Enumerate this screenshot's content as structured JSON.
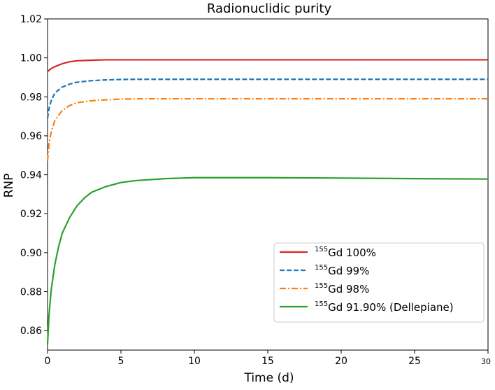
{
  "chart_data": {
    "type": "line",
    "title": "Radionuclidic purity",
    "xlabel": "Time (d)",
    "ylabel": "RNP",
    "xlim": [
      0,
      30
    ],
    "ylim": [
      0.85,
      1.02
    ],
    "xticks": [
      0,
      5,
      10,
      15,
      20,
      25,
      30
    ],
    "xtick_labels": [
      "0",
      "5",
      "10",
      "15",
      "20",
      "25",
      "30"
    ],
    "yticks": [
      0.86,
      0.88,
      0.9,
      0.92,
      0.94,
      0.96,
      0.98,
      1.0,
      1.02
    ],
    "ytick_labels": [
      "0.86",
      "0.88",
      "0.90",
      "0.92",
      "0.94",
      "0.96",
      "0.98",
      "1.00",
      "1.02"
    ],
    "grid": false,
    "legend_position": "lower-right",
    "series": [
      {
        "name": "Gd 100%",
        "sup": "155",
        "label_rest": "Gd 100%",
        "color": "#d62728",
        "dash": "solid",
        "x": [
          0,
          0.25,
          0.5,
          1,
          1.5,
          2,
          3,
          4,
          5,
          6,
          8,
          10,
          15,
          20,
          25,
          30
        ],
        "values": [
          0.993,
          0.9945,
          0.9955,
          0.997,
          0.998,
          0.9985,
          0.9988,
          0.999,
          0.999,
          0.999,
          0.999,
          0.999,
          0.999,
          0.999,
          0.999,
          0.999
        ]
      },
      {
        "name": "Gd 99%",
        "sup": "155",
        "label_rest": "Gd 99%",
        "color": "#1f77b4",
        "dash": "dashed",
        "x": [
          0,
          0.1,
          0.25,
          0.5,
          1,
          1.5,
          2,
          3,
          4,
          5,
          6,
          8,
          10,
          15,
          20,
          25,
          30
        ],
        "values": [
          0.969,
          0.974,
          0.978,
          0.982,
          0.985,
          0.9865,
          0.9875,
          0.9883,
          0.9887,
          0.9889,
          0.989,
          0.989,
          0.989,
          0.989,
          0.989,
          0.989,
          0.989
        ]
      },
      {
        "name": "Gd 98%",
        "sup": "155",
        "label_rest": "Gd 98%",
        "color": "#ff7f0e",
        "dash": "dashdot",
        "x": [
          0,
          0.1,
          0.25,
          0.5,
          1,
          1.5,
          2,
          3,
          4,
          5,
          6,
          8,
          10,
          15,
          20,
          25,
          30
        ],
        "values": [
          0.947,
          0.956,
          0.962,
          0.968,
          0.973,
          0.9755,
          0.977,
          0.978,
          0.9785,
          0.9788,
          0.979,
          0.979,
          0.979,
          0.979,
          0.979,
          0.979,
          0.979
        ]
      },
      {
        "name": "Gd 91.90% (Dellepiane)",
        "sup": "155",
        "label_rest": "Gd 91.90% (Dellepiane)",
        "color": "#2ca02c",
        "dash": "solid",
        "x": [
          0,
          0.1,
          0.25,
          0.5,
          0.75,
          1,
          1.5,
          2,
          2.5,
          3,
          4,
          5,
          6,
          7,
          8,
          10,
          12,
          15,
          20,
          25,
          30
        ],
        "values": [
          0.853,
          0.868,
          0.881,
          0.894,
          0.903,
          0.91,
          0.918,
          0.924,
          0.928,
          0.931,
          0.934,
          0.936,
          0.937,
          0.9375,
          0.938,
          0.9385,
          0.9385,
          0.9385,
          0.9383,
          0.938,
          0.9378
        ]
      }
    ]
  }
}
